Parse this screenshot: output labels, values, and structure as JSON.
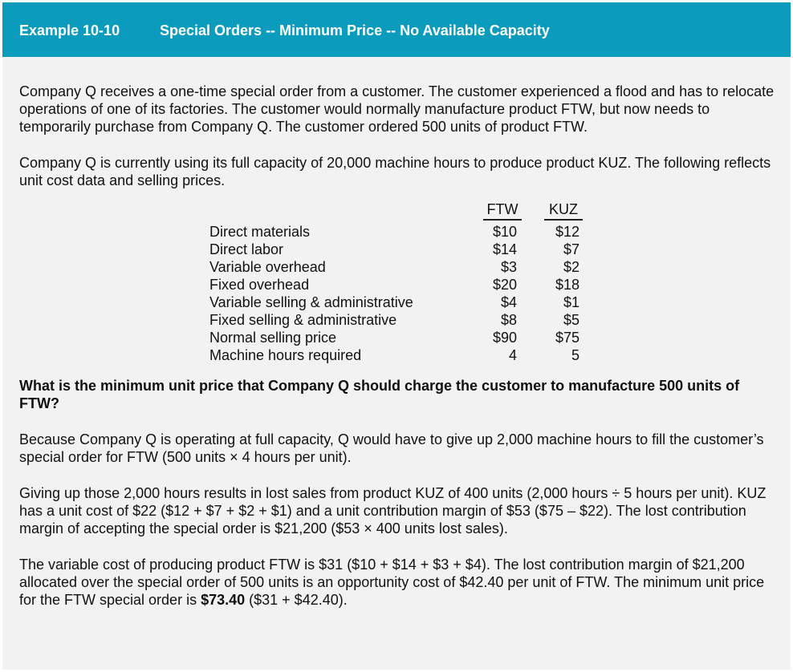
{
  "header": {
    "number": "Example 10-10",
    "title": "Special Orders -- Minimum Price -- No Available Capacity"
  },
  "paragraphs": {
    "p1": "Company Q receives a one-time special order from a customer. The customer experienced a flood and has to relocate operations of one of its factories. The customer would normally manufacture product FTW, but now needs to temporarily purchase from Company Q. The customer ordered 500 units of product FTW.",
    "p2": "Company Q is currently using its full capacity of 20,000 machine hours to produce product KUZ. The following reflects unit cost data and selling prices."
  },
  "table": {
    "col1": "FTW",
    "col2": "KUZ",
    "rows": [
      {
        "label": "Direct materials",
        "ftw": "$10",
        "kuz": "$12"
      },
      {
        "label": "Direct labor",
        "ftw": "$14",
        "kuz": "$7"
      },
      {
        "label": "Variable overhead",
        "ftw": "$3",
        "kuz": "$2"
      },
      {
        "label": "Fixed overhead",
        "ftw": "$20",
        "kuz": "$18"
      },
      {
        "label": "Variable selling & administrative",
        "ftw": "$4",
        "kuz": "$1"
      },
      {
        "label": "Fixed selling & administrative",
        "ftw": "$8",
        "kuz": "$5"
      },
      {
        "label": "Normal selling price",
        "ftw": "$90",
        "kuz": "$75"
      },
      {
        "label": "Machine hours required",
        "ftw": "4",
        "kuz": "5"
      }
    ]
  },
  "question": "What is the minimum unit price that Company Q should charge the customer to manufacture 500 units of FTW?",
  "answer": {
    "a1": "Because Company Q is operating at full capacity, Q would have to give up 2,000 machine hours to fill the customer’s special order for FTW (500 units × 4 hours per unit).",
    "a2": "Giving up those 2,000 hours results in lost sales from product KUZ of 400 units (2,000 hours ÷ 5 hours per unit). KUZ has a unit cost of $22 ($12 + $7 + $2 + $1) and a unit contribution margin of $53 ($75 – $22). The lost contribution margin of accepting the special order is $21,200 ($53 × 400 units lost sales).",
    "a3_pre": "The variable cost of producing product FTW is $31 ($10 + $14 + $3 + $4). The lost contribution margin of $21,200 allocated over the special order of 500 units is an opportunity cost of $42.40 per unit of FTW. The minimum unit price for the FTW special order is ",
    "a3_bold": "$73.40",
    "a3_post": " ($31 + $42.40)."
  },
  "colors": {
    "header_bg": "#0a9bbd",
    "panel_bg": "#f2f2f2"
  }
}
